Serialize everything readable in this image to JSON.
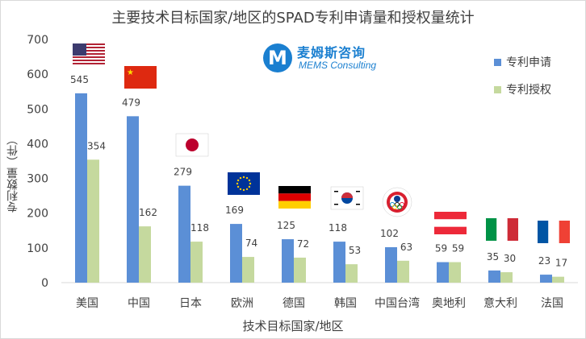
{
  "chart_data": {
    "type": "bar",
    "title": "主要技术目标国家/地区的SPAD专利申请量和授权量统计",
    "xlabel": "技术目标国家/地区",
    "ylabel": "专利数量（件）",
    "ylim": [
      0,
      700
    ],
    "yticks": [
      0,
      100,
      200,
      300,
      400,
      500,
      600,
      700
    ],
    "grid": false,
    "legend_position": "top-right",
    "categories": [
      "美国",
      "中国",
      "日本",
      "欧洲",
      "德国",
      "韩国",
      "中国台湾",
      "奥地利",
      "意大利",
      "法国"
    ],
    "series": [
      {
        "name": "专利申请",
        "color": "#5b8fd6",
        "values": [
          545,
          479,
          279,
          169,
          125,
          118,
          102,
          59,
          35,
          23
        ]
      },
      {
        "name": "专利授权",
        "color": "#c5d99e",
        "values": [
          354,
          162,
          118,
          74,
          72,
          53,
          63,
          59,
          30,
          17
        ]
      }
    ],
    "flags": [
      "flag-usa",
      "flag-china",
      "flag-japan",
      "flag-eu",
      "flag-germany",
      "flag-korea",
      "flag-taiwan",
      "flag-austria",
      "flag-italy",
      "flag-france"
    ]
  },
  "logo": {
    "letter": "M",
    "cn": "麦姆斯咨询",
    "en": "MEMS Consulting"
  }
}
